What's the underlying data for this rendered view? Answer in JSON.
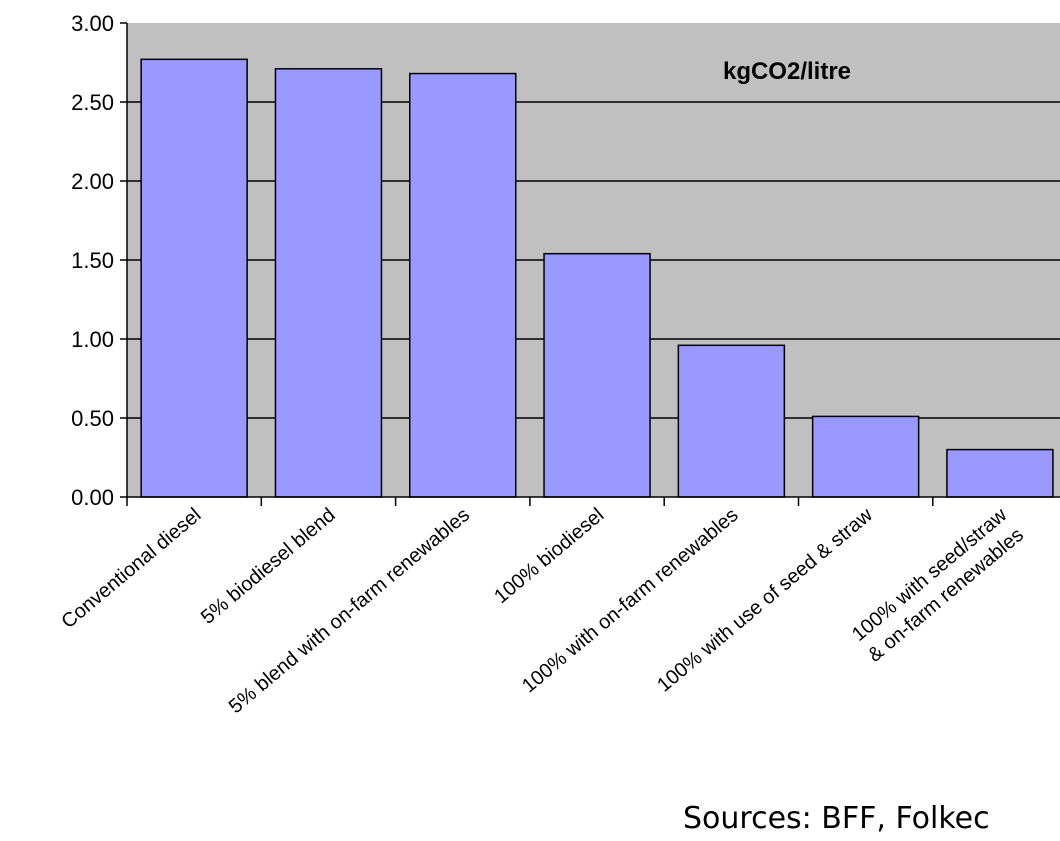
{
  "chart_data": {
    "type": "bar",
    "categories": [
      "Conventional diesel",
      "5% biodiesel blend",
      "5% blend with on-farm renewables",
      "100% biodiesel",
      "100% with on-farm renewables",
      "100% with use of seed & straw",
      [
        "100% with seed/straw",
        "& on-farm renewables"
      ],
      ""
    ],
    "values": [
      2.77,
      2.71,
      2.68,
      1.54,
      0.96,
      0.51,
      0.3,
      null
    ],
    "series_label": "kgCO2/litre",
    "ylim": [
      0,
      3
    ],
    "yticks": [
      "0.00",
      "0.50",
      "1.00",
      "1.50",
      "2.00",
      "2.50",
      "3.00"
    ],
    "grid": true,
    "colors": {
      "bar": "#9999ff",
      "plot_background": "#c0c0c0",
      "gridline": "#000000"
    }
  },
  "footer": {
    "source_note": "Sources: BFF, Folkec"
  }
}
